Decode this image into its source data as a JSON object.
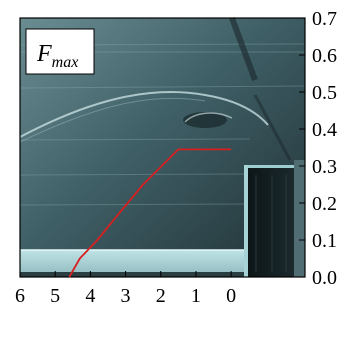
{
  "chart_data": {
    "type": "line",
    "title": "",
    "xlabel": "",
    "ylabel": "",
    "panel_label": {
      "main": "F",
      "sub": "max"
    },
    "x_ticks": [
      "6",
      "5",
      "4",
      "3",
      "2",
      "1",
      "0"
    ],
    "y_ticks": [
      "0.0",
      "0.1",
      "0.2",
      "0.3",
      "0.4",
      "0.5",
      "0.6",
      "0.7"
    ],
    "xlim": [
      6,
      -2.1
    ],
    "ylim": [
      0,
      0.7
    ],
    "x_reversed": true,
    "y_axis_side": "right",
    "grid": false,
    "background": "schlieren photograph of a cavity flow with a step/plate on the right",
    "series": [
      {
        "color": "#d62020",
        "x": [
          4.6,
          4.3,
          3.8,
          3.2,
          2.5,
          1.5,
          0.0
        ],
        "y": [
          0.0,
          0.05,
          0.1,
          0.17,
          0.25,
          0.345,
          0.345
        ]
      }
    ]
  }
}
